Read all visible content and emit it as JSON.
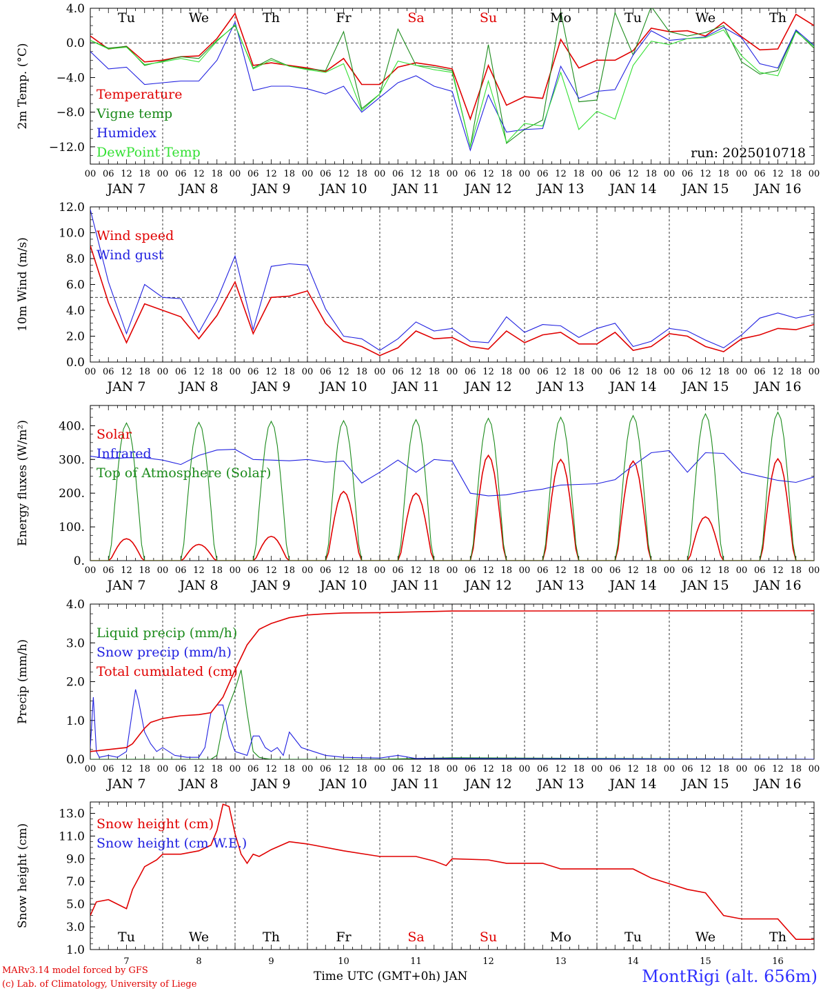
{
  "meta": {
    "run_label": "run: 2025010718",
    "model_credit": "MARv3.14 model forced by GFS",
    "lab_credit": "(c) Lab. of Climatology, University of Liege",
    "time_axis_label": "Time UTC (GMT+0h) JAN",
    "station": "MontRigi (alt. 656m)"
  },
  "days": [
    "Tu",
    "We",
    "Th",
    "Fr",
    "Sa",
    "Su",
    "Mo",
    "Tu",
    "We",
    "Th"
  ],
  "day_colors": [
    "#000000",
    "#000000",
    "#000000",
    "#000000",
    "#e00000",
    "#e00000",
    "#000000",
    "#000000",
    "#000000",
    "#000000"
  ],
  "date_labels": [
    "JAN 7",
    "JAN 8",
    "JAN 9",
    "JAN 10",
    "JAN 11",
    "JAN 12",
    "JAN 13",
    "JAN 14",
    "JAN 15",
    "JAN 16"
  ],
  "bottom_dates": [
    "7",
    "8",
    "9",
    "10",
    "11",
    "12",
    "13",
    "14",
    "15",
    "16"
  ],
  "hour_ticks": [
    "00",
    "06",
    "12",
    "18"
  ],
  "chart_data": [
    {
      "type": "line",
      "ylabel": "2m Temp. (°C)",
      "ylim": [
        -14,
        4
      ],
      "yticks": [
        4.0,
        0.0,
        -4.0,
        -8.0,
        -12.0
      ],
      "ytick_labels": [
        "4.0",
        "0.0",
        "−4.0",
        "−8.0",
        "−12.0"
      ],
      "ref_line": 0,
      "series": [
        {
          "name": "Temperature",
          "color": "#e00000",
          "x": [
            0,
            6,
            12,
            18,
            24,
            30,
            36,
            42,
            48,
            54,
            60,
            66,
            72,
            78,
            84,
            90,
            96,
            102,
            108,
            114,
            120,
            126,
            132,
            138,
            144,
            150,
            156,
            162,
            168,
            174,
            180,
            186,
            192,
            198,
            204,
            210,
            216,
            222,
            228,
            234,
            240
          ],
          "y": [
            0.8,
            -0.7,
            -0.4,
            -2.2,
            -2.0,
            -1.6,
            -1.5,
            0.5,
            3.4,
            -2.6,
            -2.3,
            -2.6,
            -2.9,
            -3.3,
            -1.8,
            -4.8,
            -4.8,
            -2.8,
            -2.3,
            -2.6,
            -3.0,
            -8.8,
            -2.6,
            -7.2,
            -6.2,
            -6.4,
            0.4,
            -2.9,
            -2.0,
            -2.0,
            -0.9,
            1.7,
            1.3,
            1.4,
            0.8,
            2.4,
            0.7,
            -0.8,
            -0.7,
            3.3,
            2.0
          ]
        },
        {
          "name": "Vigne temp",
          "color": "#1a8a1a",
          "x": [
            0,
            6,
            12,
            18,
            24,
            30,
            36,
            42,
            48,
            54,
            60,
            66,
            72,
            78,
            84,
            90,
            96,
            102,
            108,
            114,
            120,
            126,
            132,
            138,
            144,
            150,
            156,
            162,
            168,
            174,
            180,
            186,
            192,
            198,
            204,
            210,
            216,
            222,
            228,
            234,
            240
          ],
          "y": [
            0.3,
            -0.6,
            -0.4,
            -2.6,
            -2.1,
            -1.6,
            -1.8,
            0.3,
            2.0,
            -2.9,
            -1.8,
            -2.7,
            -3.0,
            -3.2,
            1.3,
            -7.6,
            -5.9,
            1.6,
            -2.6,
            -2.8,
            -3.2,
            -12.0,
            -0.2,
            -11.6,
            -10.0,
            -8.9,
            3.6,
            -6.8,
            -6.6,
            3.5,
            -1.4,
            4.2,
            1.3,
            0.8,
            1.2,
            2.0,
            -2.2,
            -3.6,
            -3.2,
            1.4,
            -0.6
          ]
        },
        {
          "name": "Humidex",
          "color": "#2020e0",
          "x": [
            0,
            6,
            12,
            18,
            24,
            30,
            36,
            42,
            48,
            54,
            60,
            66,
            72,
            78,
            84,
            90,
            96,
            102,
            108,
            114,
            120,
            126,
            132,
            138,
            144,
            150,
            156,
            162,
            168,
            174,
            180,
            186,
            192,
            198,
            204,
            210,
            216,
            222,
            228,
            234,
            240
          ],
          "y": [
            -1.0,
            -3.0,
            -2.8,
            -4.8,
            -4.6,
            -4.4,
            -4.4,
            -2.0,
            2.4,
            -5.5,
            -5.0,
            -5.0,
            -5.3,
            -5.9,
            -5.0,
            -8.0,
            -6.3,
            -4.6,
            -3.8,
            -5.0,
            -5.6,
            -12.4,
            -6.0,
            -10.3,
            -10.0,
            -9.9,
            -2.7,
            -6.4,
            -5.6,
            -5.4,
            -1.4,
            1.4,
            0.3,
            0.5,
            0.7,
            1.8,
            0.6,
            -2.4,
            -2.9,
            1.5,
            -0.3
          ]
        },
        {
          "name": "DewPoint Temp",
          "color": "#33e033",
          "x": [
            0,
            6,
            12,
            18,
            24,
            30,
            36,
            42,
            48,
            54,
            60,
            66,
            72,
            78,
            84,
            90,
            96,
            102,
            108,
            114,
            120,
            126,
            132,
            138,
            144,
            150,
            156,
            162,
            168,
            174,
            180,
            186,
            192,
            198,
            204,
            210,
            216,
            222,
            228,
            234,
            240
          ],
          "y": [
            0.3,
            -0.7,
            -0.5,
            -2.5,
            -2.2,
            -1.8,
            -2.2,
            0.2,
            2.1,
            -3.0,
            -2.0,
            -2.7,
            -3.1,
            -3.4,
            -2.4,
            -7.8,
            -5.9,
            -2.1,
            -2.6,
            -3.1,
            -3.4,
            -12.0,
            -4.4,
            -11.5,
            -9.3,
            -9.6,
            -3.4,
            -10.0,
            -7.9,
            -8.8,
            -2.6,
            0.2,
            -0.2,
            0.5,
            0.6,
            1.5,
            -1.5,
            -3.4,
            -3.8,
            1.3,
            -0.4
          ]
        }
      ]
    },
    {
      "type": "line",
      "ylabel": "10m Wind (m/s)",
      "ylim": [
        0,
        12
      ],
      "yticks": [
        12.0,
        10.0,
        8.0,
        6.0,
        4.0,
        2.0,
        0.0
      ],
      "ytick_labels": [
        "12.0",
        "10.0",
        "8.0",
        "6.0",
        "4.0",
        "2.0",
        "0.0"
      ],
      "ref_line": 5,
      "series": [
        {
          "name": "Wind speed",
          "color": "#e00000",
          "x": [
            0,
            6,
            12,
            18,
            24,
            30,
            36,
            42,
            48,
            54,
            60,
            66,
            72,
            78,
            84,
            90,
            96,
            102,
            108,
            114,
            120,
            126,
            132,
            138,
            144,
            150,
            156,
            162,
            168,
            174,
            180,
            186,
            192,
            198,
            204,
            210,
            216,
            222,
            228,
            234,
            240
          ],
          "y": [
            9.0,
            4.6,
            1.5,
            4.5,
            4.0,
            3.5,
            1.8,
            3.6,
            6.2,
            2.2,
            5.0,
            5.1,
            5.5,
            3.0,
            1.6,
            1.2,
            0.5,
            1.1,
            2.4,
            1.8,
            1.9,
            1.2,
            1.0,
            2.4,
            1.5,
            2.1,
            2.3,
            1.4,
            1.4,
            2.3,
            0.9,
            1.2,
            2.2,
            2.0,
            1.2,
            0.8,
            1.8,
            2.1,
            2.6,
            2.5,
            2.9
          ]
        },
        {
          "name": "Wind gust",
          "color": "#2020e0",
          "x": [
            0,
            6,
            12,
            18,
            24,
            30,
            36,
            42,
            48,
            54,
            60,
            66,
            72,
            78,
            84,
            90,
            96,
            102,
            108,
            114,
            120,
            126,
            132,
            138,
            144,
            150,
            156,
            162,
            168,
            174,
            180,
            186,
            192,
            198,
            204,
            210,
            216,
            222,
            228,
            234,
            240
          ],
          "y": [
            11.8,
            6.2,
            2.2,
            6.0,
            5.0,
            4.9,
            2.3,
            4.8,
            8.2,
            2.5,
            7.4,
            7.6,
            7.5,
            4.1,
            2.0,
            1.8,
            0.9,
            1.8,
            3.1,
            2.4,
            2.6,
            1.6,
            1.5,
            3.5,
            2.3,
            2.9,
            2.8,
            1.9,
            2.6,
            3.0,
            1.2,
            1.6,
            2.6,
            2.4,
            1.7,
            1.1,
            2.1,
            3.4,
            3.8,
            3.4,
            3.7
          ]
        }
      ]
    },
    {
      "type": "line",
      "ylabel": "Energy fluxes (W/m²)",
      "ylim": [
        0,
        460
      ],
      "yticks": [
        400,
        300,
        200,
        100,
        0
      ],
      "ytick_labels": [
        "400.",
        "300.",
        "200.",
        "100.",
        "0."
      ],
      "series": [
        {
          "name": "Solar",
          "color": "#e00000",
          "peaks": [
            65,
            48,
            72,
            205,
            200,
            312,
            300,
            295,
            130,
            302
          ],
          "shape": "diurnal"
        },
        {
          "name": "Infrared",
          "color": "#2020e0",
          "x": [
            0,
            6,
            12,
            18,
            24,
            30,
            36,
            42,
            48,
            54,
            60,
            66,
            72,
            78,
            84,
            90,
            96,
            102,
            108,
            114,
            120,
            126,
            132,
            138,
            144,
            150,
            156,
            162,
            168,
            174,
            180,
            186,
            192,
            198,
            204,
            210,
            216,
            222,
            228,
            234,
            240
          ],
          "y": [
            310,
            302,
            305,
            305,
            298,
            285,
            312,
            328,
            330,
            300,
            298,
            296,
            300,
            292,
            295,
            230,
            262,
            298,
            262,
            300,
            295,
            200,
            192,
            195,
            205,
            212,
            224,
            226,
            228,
            240,
            282,
            320,
            326,
            262,
            320,
            318,
            262,
            250,
            238,
            232,
            248
          ]
        },
        {
          "name": "Top of Atmosphere (Solar)",
          "color": "#1a8a1a",
          "peaks": [
            408,
            410,
            413,
            415,
            418,
            422,
            425,
            430,
            435,
            440
          ],
          "shape": "diurnal"
        }
      ]
    },
    {
      "type": "line",
      "ylabel": "Precip (mm/h)",
      "ylim": [
        0,
        4
      ],
      "yticks": [
        4.0,
        3.0,
        2.0,
        1.0,
        0.0
      ],
      "ytick_labels": [
        "4.0",
        "3.0",
        "2.0",
        "1.0",
        "0.0"
      ],
      "series": [
        {
          "name": "Liquid precip (mm/h)",
          "color": "#1a8a1a",
          "x": [
            0,
            36,
            40,
            42,
            44,
            46,
            48,
            50,
            52,
            54,
            56,
            58,
            60,
            66,
            72,
            96,
            120,
            240
          ],
          "y": [
            0,
            0,
            0,
            0.1,
            0.9,
            1.4,
            1.8,
            2.3,
            1.2,
            0.2,
            0.05,
            0.02,
            0,
            0,
            0,
            0,
            0.04,
            0
          ]
        },
        {
          "name": "Snow precip (mm/h)",
          "color": "#2020e0",
          "x": [
            0,
            1,
            2,
            3,
            6,
            9,
            12,
            15,
            16,
            18,
            20,
            22,
            24,
            28,
            32,
            36,
            38,
            40,
            42,
            44,
            46,
            48,
            52,
            54,
            56,
            58,
            60,
            62,
            64,
            66,
            70,
            74,
            78,
            84,
            96,
            102,
            108,
            120,
            240
          ],
          "y": [
            0.3,
            1.6,
            0.2,
            0.05,
            0.1,
            0.05,
            0.2,
            1.8,
            1.5,
            0.7,
            0.4,
            0.2,
            0.3,
            0.1,
            0.05,
            0.05,
            0.3,
            1.2,
            1.4,
            1.4,
            0.6,
            0.2,
            0.1,
            0.6,
            0.6,
            0.3,
            0.2,
            0.3,
            0.1,
            0.7,
            0.3,
            0.2,
            0.1,
            0.05,
            0.03,
            0.1,
            0.02,
            0.02,
            0
          ]
        },
        {
          "name": "Total cumulated (cm)",
          "color": "#e00000",
          "x": [
            0,
            6,
            12,
            14,
            16,
            18,
            20,
            22,
            24,
            30,
            36,
            40,
            44,
            48,
            52,
            56,
            60,
            66,
            72,
            78,
            84,
            96,
            120,
            240
          ],
          "y": [
            0.2,
            0.25,
            0.3,
            0.4,
            0.6,
            0.8,
            0.95,
            1.0,
            1.05,
            1.12,
            1.15,
            1.2,
            1.6,
            2.3,
            2.95,
            3.35,
            3.5,
            3.65,
            3.72,
            3.75,
            3.77,
            3.78,
            3.82,
            3.83
          ]
        }
      ]
    },
    {
      "type": "line",
      "ylabel": "Snow height (cm)",
      "ylim": [
        1,
        14
      ],
      "yticks": [
        13.0,
        11.0,
        9.0,
        7.0,
        5.0,
        3.0,
        1.0
      ],
      "ytick_labels": [
        "13.0",
        "11.0",
        "9.0",
        "7.0",
        "5.0",
        "3.0",
        "1.0"
      ],
      "series": [
        {
          "name": "Snow height (cm)",
          "color": "#e00000",
          "x": [
            0,
            2,
            6,
            12,
            14,
            18,
            22,
            24,
            30,
            36,
            40,
            42,
            44,
            46,
            48,
            50,
            52,
            54,
            56,
            60,
            66,
            72,
            84,
            96,
            108,
            114,
            118,
            120,
            132,
            138,
            144,
            150,
            156,
            168,
            180,
            186,
            192,
            198,
            204,
            210,
            216,
            222,
            228,
            234,
            240
          ],
          "y": [
            4.0,
            5.2,
            5.4,
            4.6,
            6.3,
            8.3,
            8.9,
            9.4,
            9.4,
            9.7,
            10.2,
            11.5,
            13.8,
            13.6,
            11.2,
            9.4,
            8.6,
            9.4,
            9.2,
            9.8,
            10.5,
            10.3,
            9.7,
            9.2,
            9.2,
            8.8,
            8.4,
            9.0,
            8.9,
            8.6,
            8.6,
            8.6,
            8.1,
            8.1,
            8.1,
            7.3,
            6.8,
            6.3,
            6.0,
            4.0,
            3.7,
            3.7,
            3.7,
            1.9,
            1.9
          ]
        },
        {
          "name": "Snow height (cm W.E.)",
          "color": "#2020e0",
          "x": [],
          "y": []
        }
      ]
    }
  ]
}
